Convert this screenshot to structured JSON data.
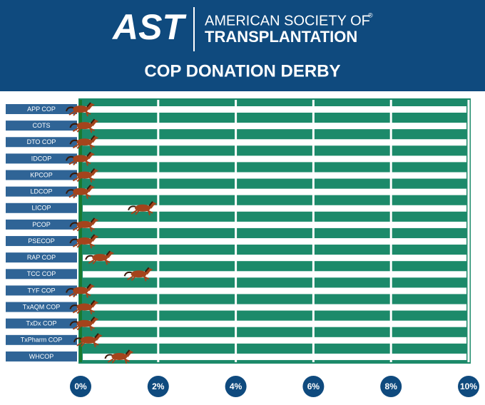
{
  "header": {
    "logo": "AST",
    "org_line1": "AMERICAN SOCIETY OF",
    "registered": "®",
    "org_line2": "TRANSPLANTATION"
  },
  "chart_data": {
    "type": "horse-race",
    "title": "COP DONATION DERBY",
    "categories": [
      "APP COP",
      "COTS",
      "DTO COP",
      "IDCOP",
      "KPCOP",
      "LDCOP",
      "LICOP",
      "PCOP",
      "PSECOP",
      "RAP COP",
      "TCC COP",
      "TYF COP",
      "TxAQM COP",
      "TxDx COP",
      "TxPharm COP",
      "WHCOP"
    ],
    "values": [
      0,
      0.1,
      0.1,
      0,
      0.1,
      0,
      1.6,
      0.1,
      0.1,
      0.5,
      1.5,
      0,
      0.1,
      0.1,
      0.2,
      1.0
    ],
    "color": "#a4441c",
    "xlim": [
      0,
      10
    ],
    "xticks": [
      {
        "value": 0,
        "label": "0%"
      },
      {
        "value": 2,
        "label": "2%"
      },
      {
        "value": 4,
        "label": "4%"
      },
      {
        "value": 6,
        "label": "6%"
      },
      {
        "value": 8,
        "label": "8%"
      },
      {
        "value": 10,
        "label": "10%"
      }
    ],
    "grid": true
  }
}
